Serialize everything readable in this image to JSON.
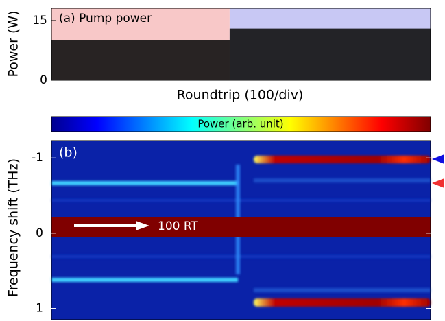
{
  "chart_data": [
    {
      "type": "area",
      "title": "(a) Pump power",
      "xlabel": "Roundtrip (100/div)",
      "ylabel": "Power (W)",
      "x": [
        0,
        4.7,
        4.7,
        10
      ],
      "values": [
        10,
        10,
        13,
        13
      ],
      "color": "#111111",
      "xlim": [
        0,
        10
      ],
      "ylim": [
        0,
        18.1
      ],
      "yticks": [
        0,
        15
      ],
      "regions": [
        {
          "from": 0,
          "to": 4.7,
          "color": "#f8c8c8"
        },
        {
          "from": 4.7,
          "to": 10,
          "color": "#c8c8f4"
        }
      ]
    },
    {
      "type": "heatmap",
      "colorbar_label": "Power (arb. unit)",
      "ylabel": "Frequency shift (THz)",
      "annotation": "100 RT",
      "panel_label": "(b)",
      "ylim": [
        -1.23,
        1.15
      ],
      "yticks": [
        -1,
        0,
        1
      ],
      "y_inverted": true
    }
  ]
}
